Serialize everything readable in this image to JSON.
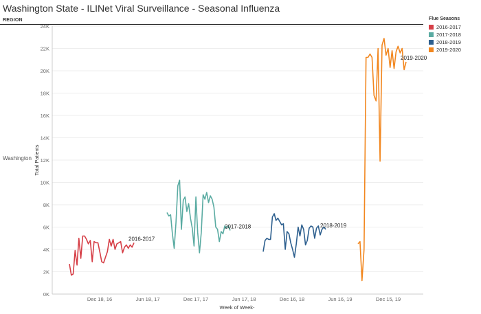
{
  "header": {
    "title": "Washington State - ILINet Viral Surveillance - Seasonal Influenza",
    "region_label": "REGION",
    "row_label": "Washington"
  },
  "chart_data": {
    "type": "line",
    "xlabel": "Week of Week-",
    "ylabel": "Total Patients",
    "ylim": [
      0,
      24000
    ],
    "y_ticks": [
      0,
      2000,
      4000,
      6000,
      8000,
      10000,
      12000,
      14000,
      16000,
      18000,
      20000,
      22000,
      24000
    ],
    "y_tick_labels": [
      "0K",
      "2K",
      "4K",
      "6K",
      "8K",
      "10K",
      "12K",
      "14K",
      "16K",
      "18K",
      "20K",
      "22K",
      "24K"
    ],
    "x_ticks": [
      "Dec 18, 16",
      "Jun 18, 17",
      "Dec 17, 17",
      "Jun 17, 18",
      "Dec 16, 18",
      "Jun 16, 19",
      "Dec 15, 19"
    ],
    "grid": true,
    "legend": {
      "title": "Flue Seasons",
      "placement": "top-right"
    },
    "series": [
      {
        "name": "2016-2017",
        "color": "#d63f47",
        "values": [
          2700,
          1700,
          1800,
          3900,
          2600,
          5000,
          3200,
          5200,
          5200,
          4900,
          4500,
          4800,
          2900,
          4700,
          4600,
          4600,
          3800,
          2900,
          2800,
          3300,
          3800,
          4900,
          4300,
          4900,
          4000,
          4500,
          4600,
          4700,
          3700,
          4200,
          4400,
          4100,
          4400,
          4200,
          4600
        ]
      },
      {
        "name": "2017-2018",
        "color": "#5aaba2",
        "values": [
          7300,
          7000,
          7100,
          5400,
          4100,
          6400,
          9700,
          10200,
          5800,
          8400,
          8700,
          7400,
          8100,
          6800,
          5900,
          4300,
          8700,
          5500,
          3700,
          5500,
          8900,
          8500,
          9100,
          8200,
          8800,
          8500,
          7800,
          6000,
          5800,
          4700,
          5600,
          5400,
          6100,
          5900,
          6100,
          5700
        ]
      },
      {
        "name": "2018-2019",
        "color": "#2d5f8e",
        "values": [
          3800,
          4800,
          5000,
          4900,
          4900,
          6900,
          7200,
          6600,
          6800,
          6500,
          6200,
          6300,
          4000,
          5600,
          5400,
          4600,
          4000,
          3300,
          4500,
          6000,
          5200,
          6200,
          5800,
          4400,
          4800,
          5900,
          6100,
          6000,
          5000,
          5900,
          6100,
          5300,
          5800,
          6000,
          5800
        ]
      },
      {
        "name": "2019-2020",
        "color": "#f2871f",
        "values": [
          4500,
          4700,
          1200,
          4000,
          21200,
          21200,
          21500,
          21200,
          17800,
          17300,
          22000,
          11900,
          22300,
          22900,
          21400,
          22000,
          20300,
          21800,
          20200,
          21700,
          22200,
          21600,
          22000,
          20100,
          20800
        ]
      }
    ]
  }
}
